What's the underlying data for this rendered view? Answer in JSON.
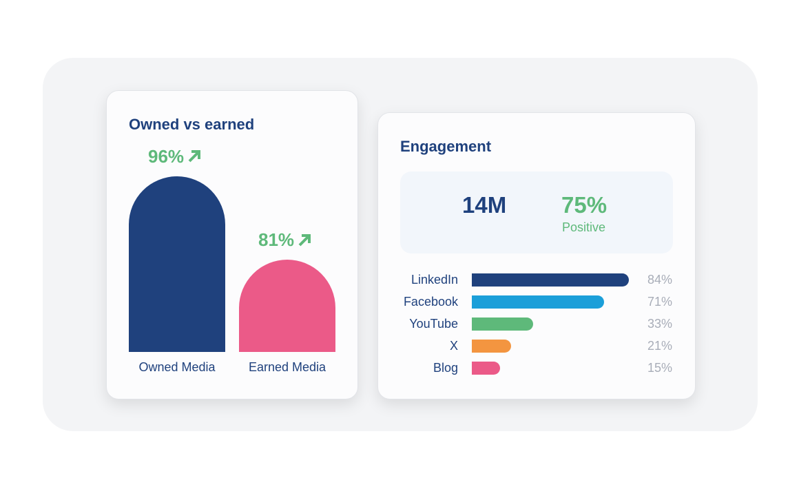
{
  "chart_data": [
    {
      "type": "bar",
      "title": "Owned vs earned",
      "categories": [
        "Owned Media",
        "Earned Media"
      ],
      "values": [
        96,
        81
      ],
      "value_labels": [
        "96%",
        "81%"
      ],
      "trend": [
        "up",
        "up"
      ],
      "colors": [
        "#1f417d",
        "#eb5a88"
      ],
      "label_color": "#5eb97a",
      "grid": false
    },
    {
      "type": "bar",
      "orientation": "horizontal",
      "title": "Engagement",
      "summary": {
        "total": "14M",
        "sentiment_value": "75%",
        "sentiment_label": "Positive"
      },
      "categories": [
        "LinkedIn",
        "Facebook",
        "YouTube",
        "X",
        "Blog"
      ],
      "values": [
        84,
        71,
        33,
        21,
        15
      ],
      "value_labels": [
        "84%",
        "71%",
        "33%",
        "21%",
        "15%"
      ],
      "colors": [
        "#1f417d",
        "#1b9fd9",
        "#5eb97a",
        "#f39540",
        "#eb5a88"
      ],
      "xlim": [
        0,
        100
      ],
      "grid": false
    }
  ]
}
